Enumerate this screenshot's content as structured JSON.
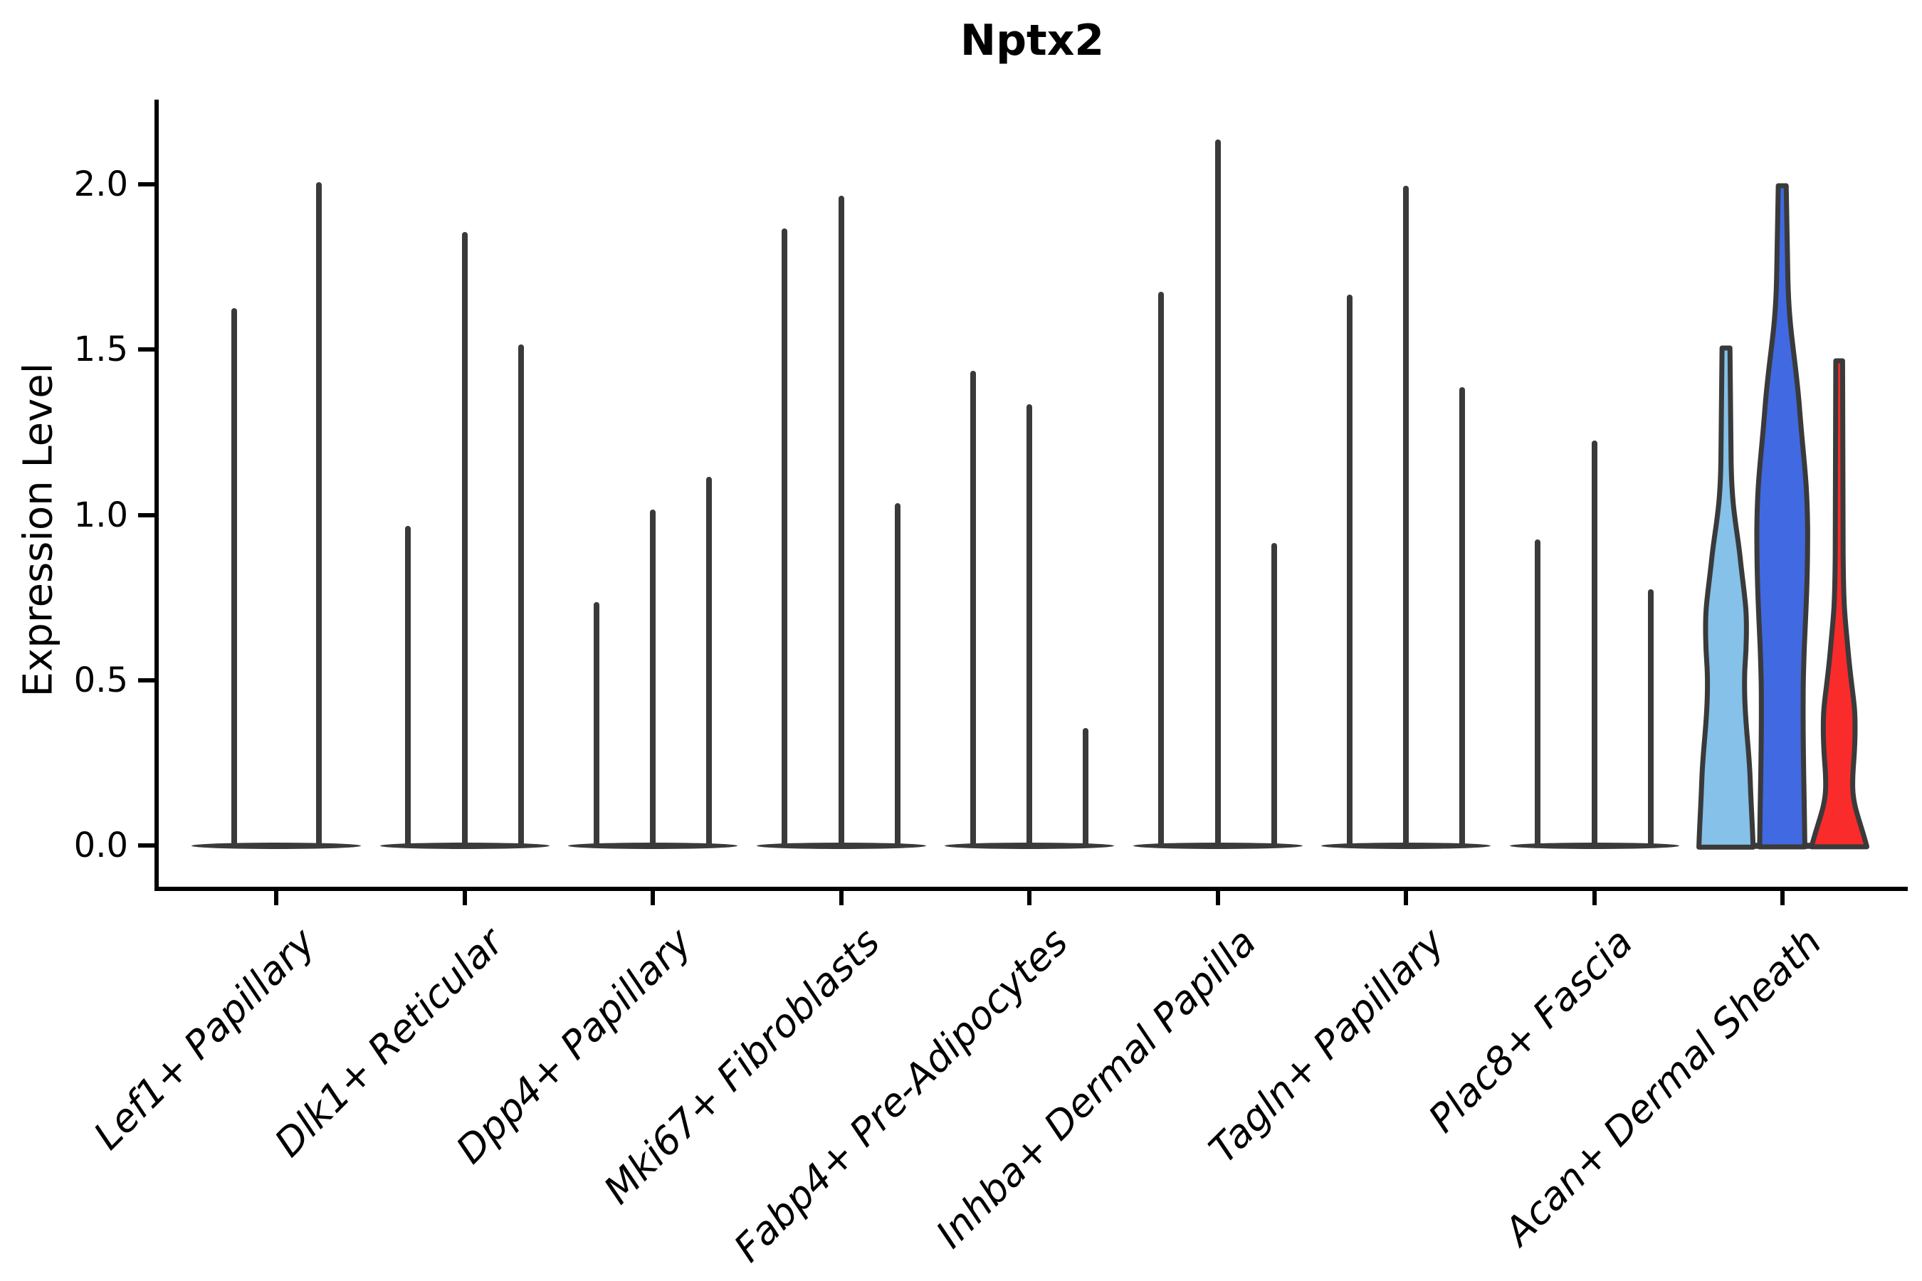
{
  "title": "Nptx2",
  "ylabel": "Expression Level",
  "chart_data": {
    "type": "violin",
    "title": "Nptx2",
    "xlabel": "",
    "ylabel": "Expression Level",
    "ylim": [
      -0.13,
      2.26
    ],
    "yticks": [
      0.0,
      0.5,
      1.0,
      1.5,
      2.0
    ],
    "ytick_labels": [
      "0.0",
      "0.5",
      "1.0",
      "1.5",
      "2.0"
    ],
    "grid": "off",
    "legend": "none",
    "categories": [
      "Lef1+ Papillary",
      "Dlk1+ Reticular",
      "Dpp4+ Papillary",
      "Mki67+ Fibroblasts",
      "Fabp4+ Pre-Adipocytes",
      "Inhba+ Dermal Papilla",
      "Tagln+ Papillary",
      "Plac8+ Fascia",
      "Acan+ Dermal Sheath"
    ],
    "groups": [
      {
        "category": "Lef1+ Papillary",
        "violins": [
          {
            "max": 1.63,
            "style": "spike"
          },
          {
            "max": 2.01,
            "style": "spike"
          }
        ]
      },
      {
        "category": "Dlk1+ Reticular",
        "violins": [
          {
            "max": 0.97,
            "style": "spike"
          },
          {
            "max": 1.86,
            "style": "spike"
          },
          {
            "max": 1.52,
            "style": "spike"
          }
        ]
      },
      {
        "category": "Dpp4+ Papillary",
        "violins": [
          {
            "max": 0.74,
            "style": "spike"
          },
          {
            "max": 1.02,
            "style": "spike"
          },
          {
            "max": 1.12,
            "style": "spike"
          }
        ]
      },
      {
        "category": "Mki67+ Fibroblasts",
        "violins": [
          {
            "max": 1.87,
            "style": "spike"
          },
          {
            "max": 1.97,
            "style": "spike"
          },
          {
            "max": 1.04,
            "style": "spike"
          }
        ]
      },
      {
        "category": "Fabp4+ Pre-Adipocytes",
        "violins": [
          {
            "max": 1.44,
            "style": "spike"
          },
          {
            "max": 1.34,
            "style": "spike"
          },
          {
            "max": 0.36,
            "style": "spike"
          }
        ]
      },
      {
        "category": "Inhba+ Dermal Papilla",
        "violins": [
          {
            "max": 1.68,
            "style": "spike"
          },
          {
            "max": 2.14,
            "style": "spike"
          },
          {
            "max": 0.92,
            "style": "spike"
          }
        ]
      },
      {
        "category": "Tagln+ Papillary",
        "violins": [
          {
            "max": 1.67,
            "style": "spike"
          },
          {
            "max": 2.0,
            "style": "spike"
          },
          {
            "max": 1.39,
            "style": "spike"
          }
        ]
      },
      {
        "category": "Plac8+ Fascia",
        "violins": [
          {
            "max": 0.93,
            "style": "spike"
          },
          {
            "max": 1.23,
            "style": "spike"
          },
          {
            "max": 0.78,
            "style": "spike"
          }
        ]
      },
      {
        "category": "Acan+ Dermal Sheath",
        "violins": [
          {
            "max": 1.51,
            "style": "shaped",
            "shape": "sky",
            "color": "#85C1E9"
          },
          {
            "max": 2.0,
            "style": "shaped",
            "shape": "blue",
            "color": "#4169E1"
          },
          {
            "max": 1.47,
            "style": "shaped",
            "shape": "red",
            "color": "#FA2B2B"
          }
        ]
      }
    ],
    "colors": {
      "spike": "#3A3A3A",
      "violin_outline": "#3A3A3A",
      "sky": "#85C1E9",
      "blue": "#4169E1",
      "red": "#FA2B2B",
      "axis": "#000000",
      "text": "#000000"
    }
  }
}
